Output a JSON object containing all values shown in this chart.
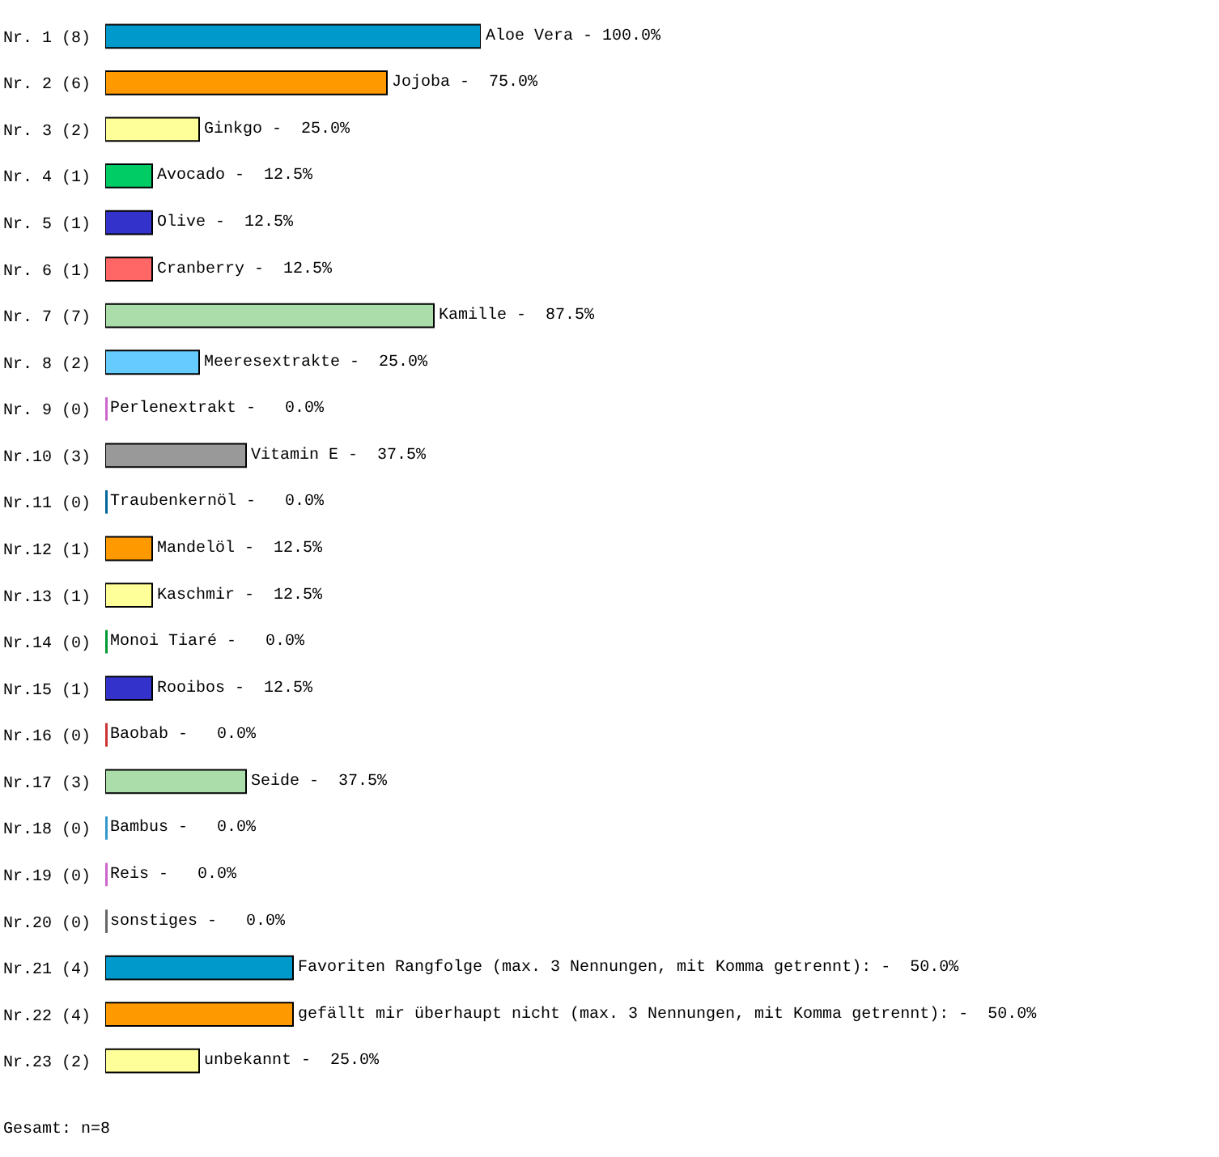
{
  "chart_data": {
    "type": "bar",
    "orientation": "horizontal",
    "categories": [
      "Nr. 1 (8)",
      "Nr. 2 (6)",
      "Nr. 3 (2)",
      "Nr. 4 (1)",
      "Nr. 5 (1)",
      "Nr. 6 (1)",
      "Nr. 7 (7)",
      "Nr. 8 (2)",
      "Nr. 9 (0)",
      "Nr.10 (3)",
      "Nr.11 (0)",
      "Nr.12 (1)",
      "Nr.13 (1)",
      "Nr.14 (0)",
      "Nr.15 (1)",
      "Nr.16 (0)",
      "Nr.17 (3)",
      "Nr.18 (0)",
      "Nr.19 (0)",
      "Nr.20 (0)",
      "Nr.21 (4)",
      "Nr.22 (4)",
      "Nr.23 (2)"
    ],
    "values": [
      100,
      75,
      25,
      12.5,
      12.5,
      12.5,
      87.5,
      25,
      0,
      37.5,
      0,
      12.5,
      12.5,
      0,
      12.5,
      0,
      37.5,
      0,
      0,
      0,
      50,
      50,
      25
    ],
    "colors": [
      "#0099cc",
      "#ff9900",
      "#ffff99",
      "#00cc66",
      "#3333cc",
      "#ff6666",
      "#aaddaa",
      "#66ccff",
      "#cc66cc",
      "#999999",
      "#006699",
      "#ff9900",
      "#ffff99",
      "#009933",
      "#3333cc",
      "#cc3333",
      "#aaddaa",
      "#3399cc",
      "#cc66cc",
      "#666666",
      "#0099cc",
      "#ff9900",
      "#ffff99"
    ],
    "value_labels": [
      "Aloe Vera ‐ 100.0%",
      "Jojoba ‐  75.0%",
      "Ginkgo ‐  25.0%",
      "Avocado ‐  12.5%",
      "Olive ‐  12.5%",
      "Cranberry ‐  12.5%",
      "Kamille ‐  87.5%",
      "Meeresextrakte ‐  25.0%",
      "Perlenextrakt ‐   0.0%",
      "Vitamin E ‐  37.5%",
      "Traubenkernöl ‐   0.0%",
      "Mandelöl ‐  12.5%",
      "Kaschmir ‐  12.5%",
      "Monoi Tiaré ‐   0.0%",
      "Rooibos ‐  12.5%",
      "Baobab ‐   0.0%",
      "Seide ‐  37.5%",
      "Bambus ‐   0.0%",
      "Reis ‐   0.0%",
      "sonstiges ‐   0.0%",
      "Favoriten Rangfolge (max. 3 Nennungen, mit Komma getrennt): ‐  50.0%",
      "gefällt mir überhaupt nicht (max. 3 Nennungen, mit Komma getrennt): ‐  50.0%",
      "unbekannt ‐  25.0%"
    ],
    "annotations": [
      "Gesamt: n=8"
    ],
    "tick_labels": "y"
  }
}
